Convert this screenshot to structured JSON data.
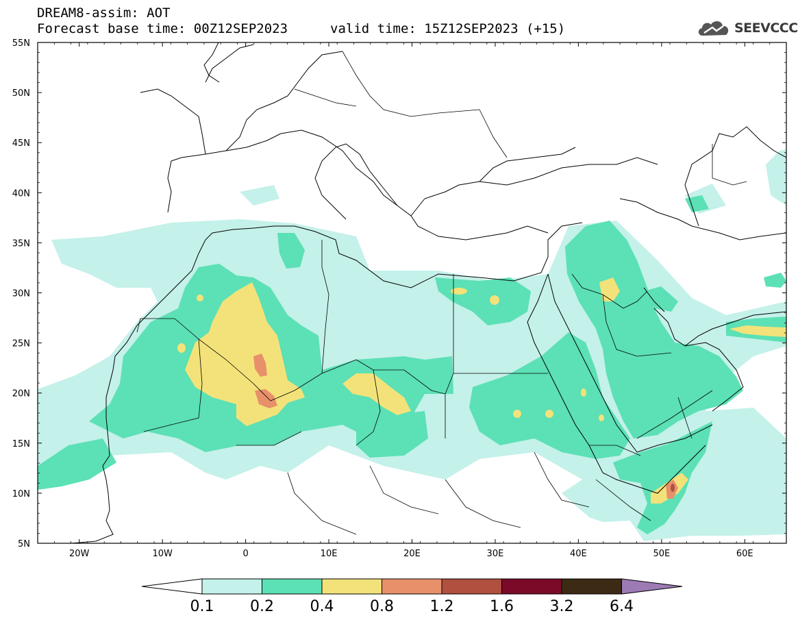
{
  "header": {
    "line1": "DREAM8-assim: AOT",
    "line2_left": "Forecast base time: 00Z12SEP2023",
    "line2_right": "valid time: 15Z12SEP2023 (+15)",
    "logo_text": "SEEVCCC",
    "logo_icon": "cloud-icon"
  },
  "map": {
    "lat_labels": [
      "55N",
      "50N",
      "45N",
      "40N",
      "35N",
      "30N",
      "25N",
      "20N",
      "15N",
      "10N",
      "5N"
    ],
    "lon_labels": [
      "20W",
      "10W",
      "0",
      "10E",
      "20E",
      "30E",
      "40E",
      "50E",
      "60E"
    ],
    "lat_range": [
      5,
      55
    ],
    "lon_range": [
      -25,
      65
    ]
  },
  "colorbar": {
    "labels": [
      "0.1",
      "0.2",
      "0.4",
      "0.8",
      "1.2",
      "1.6",
      "3.2",
      "6.4"
    ],
    "colors": [
      "#c4f1ea",
      "#5ce0b5",
      "#f3e27a",
      "#e8906a",
      "#b0503f",
      "#7a0a28",
      "#3d2a14",
      "#9c7bb5"
    ]
  }
}
